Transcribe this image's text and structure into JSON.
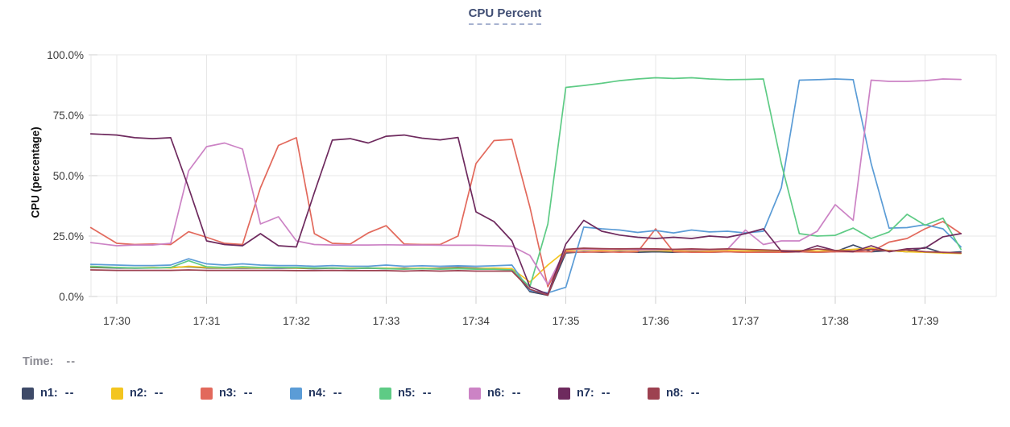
{
  "title": "CPU Percent",
  "time_row": {
    "label": "Time:",
    "value": "--"
  },
  "colors": {
    "title_text": "#3f4d73",
    "legend_text": "#23355e",
    "time_text": "#8b8b93",
    "axis_text": "#3a3a3a",
    "grid": "#e7e7e7",
    "tick": "#cfcfcf",
    "background": "#ffffff"
  },
  "chart_data": {
    "type": "line",
    "title": "CPU Percent",
    "xlabel": "",
    "ylabel": "CPU (percentage)",
    "ylim": [
      0,
      100
    ],
    "grid": true,
    "legend_position": "bottom",
    "x_unit": "minutes after 17:30",
    "x_tick_times": [
      0,
      1,
      2,
      3,
      4,
      5,
      6,
      7,
      8,
      9
    ],
    "x_ticks": [
      "17:30",
      "17:31",
      "17:32",
      "17:33",
      "17:34",
      "17:35",
      "17:36",
      "17:37",
      "17:38",
      "17:39"
    ],
    "y_tick_values": [
      0,
      25,
      50,
      75,
      100
    ],
    "y_ticks": [
      "0.0%",
      "25.0%",
      "50.0%",
      "75.0%",
      "100.0%"
    ],
    "x": [
      -0.29,
      0,
      0.2,
      0.4,
      0.6,
      0.8,
      1,
      1.2,
      1.4,
      1.6,
      1.8,
      2,
      2.2,
      2.4,
      2.6,
      2.8,
      3,
      3.2,
      3.4,
      3.6,
      3.8,
      4,
      4.2,
      4.4,
      4.6,
      4.8,
      5,
      5.2,
      5.4,
      5.6,
      5.8,
      6,
      6.2,
      6.4,
      6.6,
      6.8,
      7,
      7.2,
      7.4,
      7.6,
      7.8,
      8,
      8.2,
      8.4,
      8.6,
      8.8,
      9,
      9.2,
      9.4
    ],
    "series": [
      {
        "name": "n1",
        "color": "#3e4a68",
        "legend_value": "--",
        "values": [
          12,
          11.8,
          11.7,
          11.8,
          12,
          12.3,
          11.8,
          11.7,
          11.8,
          11.7,
          11.8,
          11.7,
          11.5,
          11.7,
          11.5,
          11.7,
          11.5,
          11.7,
          11.5,
          11.7,
          12,
          11.7,
          11.5,
          11.5,
          2,
          0.5,
          18,
          18.5,
          18.3,
          18.5,
          18.3,
          18.5,
          18.3,
          18.5,
          18.3,
          18.5,
          18.3,
          18.5,
          18.3,
          18.5,
          18.3,
          18.5,
          21.3,
          18.5,
          19,
          18.5,
          20.3,
          18,
          18.5
        ]
      },
      {
        "name": "n2",
        "color": "#f3c51f",
        "legend_value": "--",
        "values": [
          12.3,
          12,
          11.8,
          12,
          11.8,
          12.5,
          12,
          11.8,
          12,
          11.8,
          12,
          11.8,
          11.7,
          11.8,
          11.7,
          11.8,
          11.7,
          11.5,
          11.7,
          11.5,
          11.7,
          11.5,
          11.7,
          11.5,
          6,
          13,
          19,
          19.3,
          19,
          19.2,
          19,
          19,
          18.8,
          19,
          18.8,
          19,
          18.8,
          19,
          18.8,
          19,
          18.8,
          19,
          19.5,
          20,
          19,
          18.5,
          18.3,
          18,
          17.8
        ]
      },
      {
        "name": "n3",
        "color": "#e2695c",
        "legend_value": "--",
        "values": [
          28.5,
          22,
          21.5,
          21.7,
          21.5,
          26.8,
          24.5,
          22,
          21.5,
          45,
          62.5,
          65.7,
          26,
          22,
          21.7,
          26.3,
          29.3,
          21.7,
          21.5,
          21.5,
          25,
          55,
          64.5,
          65,
          37,
          4,
          18.5,
          18.3,
          18.5,
          18.3,
          18.5,
          28,
          18.5,
          18.3,
          18.3,
          18.5,
          18.3,
          18.3,
          18.3,
          18.5,
          18.3,
          18.5,
          18.5,
          18.5,
          22.5,
          24,
          28,
          31,
          26
        ]
      },
      {
        "name": "n4",
        "color": "#5b9cd6",
        "legend_value": "--",
        "values": [
          13.3,
          13,
          12.8,
          12.8,
          13,
          15.6,
          13.5,
          13,
          13.5,
          13,
          12.8,
          12.8,
          12.5,
          12.8,
          12.5,
          12.5,
          13,
          12.5,
          12.7,
          12.5,
          12.7,
          12.5,
          12.7,
          13,
          2.5,
          1.5,
          3.8,
          28.7,
          28,
          27.5,
          26.5,
          27.3,
          26.3,
          27.5,
          26.7,
          27,
          26.3,
          27,
          45,
          89.5,
          89.7,
          90,
          89.7,
          55,
          28.3,
          28.5,
          29.7,
          28,
          20.5
        ]
      },
      {
        "name": "n5",
        "color": "#5ecb85",
        "legend_value": "--",
        "values": [
          12.5,
          12,
          11.8,
          11.8,
          12,
          14.8,
          12.3,
          12,
          12.3,
          12,
          12,
          12,
          11.8,
          11.8,
          11.5,
          11.8,
          11.5,
          11.3,
          11.5,
          11.3,
          11.5,
          11.3,
          11.3,
          11,
          4,
          30,
          86.5,
          87.3,
          88.2,
          89.3,
          90,
          90.5,
          90.2,
          90.5,
          90,
          89.7,
          89.8,
          90,
          55,
          26,
          25,
          25.3,
          28.3,
          24,
          26.7,
          34,
          29.5,
          32.4,
          19.5
        ]
      },
      {
        "name": "n6",
        "color": "#cc83c5",
        "legend_value": "--",
        "values": [
          22.3,
          21,
          21.3,
          21.3,
          22,
          52,
          62,
          63.5,
          61,
          30,
          33,
          23,
          21.5,
          21.3,
          21.3,
          21.3,
          21.4,
          21.3,
          21.3,
          21.2,
          21.2,
          21.2,
          21,
          20.8,
          17,
          5,
          19.5,
          19.5,
          19.5,
          19.5,
          19.3,
          19.3,
          19.5,
          19.3,
          19.3,
          19.5,
          27.5,
          21.5,
          23,
          23,
          27,
          38,
          31.5,
          89.5,
          89,
          89,
          89.3,
          90,
          89.8
        ]
      },
      {
        "name": "n7",
        "color": "#6e2a5e",
        "legend_value": "--",
        "values": [
          67.3,
          66.8,
          65.7,
          65.3,
          65.7,
          45,
          23,
          21.5,
          21,
          26,
          21,
          20.5,
          43,
          64.7,
          65.3,
          63.5,
          66.3,
          66.8,
          65.5,
          64.8,
          65.8,
          35,
          31,
          23,
          4,
          1,
          21.7,
          31.5,
          27,
          25.4,
          24.5,
          24,
          24.5,
          24,
          25,
          24.5,
          26,
          28,
          18.7,
          18.5,
          21,
          19,
          18.5,
          21,
          18.5,
          19.7,
          20,
          24.7,
          26
        ]
      },
      {
        "name": "n8",
        "color": "#9d4150",
        "legend_value": "--",
        "values": [
          11,
          10.8,
          10.8,
          10.8,
          10.8,
          11,
          10.8,
          10.8,
          10.8,
          10.8,
          10.8,
          10.7,
          10.7,
          10.8,
          10.7,
          10.7,
          10.7,
          10.5,
          10.7,
          10.5,
          10.7,
          10.5,
          10.5,
          10.5,
          3,
          0.5,
          19.5,
          20,
          19.8,
          19.7,
          19.8,
          19.7,
          19.5,
          19.7,
          19.5,
          19.7,
          19.5,
          19.3,
          19,
          18.8,
          19.7,
          19,
          18.8,
          19.5,
          18.8,
          19.3,
          18.5,
          18.3,
          18
        ]
      }
    ]
  }
}
